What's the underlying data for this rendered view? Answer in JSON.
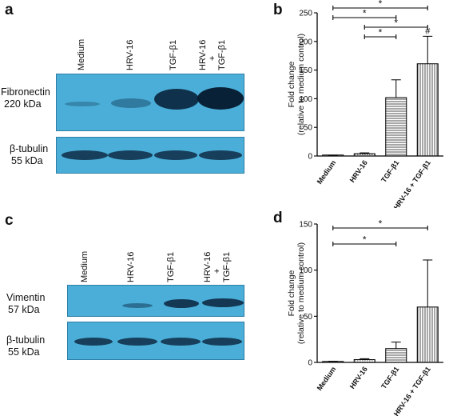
{
  "panels": {
    "a": {
      "letter": "a",
      "lanes": [
        "Medium",
        "HRV-16",
        "TGF-β1",
        "HRV-16",
        "+",
        "TGF-β1"
      ],
      "blot1_label": [
        "Fibronectin",
        "220 kDa"
      ],
      "blot2_label": [
        "β-tubulin",
        "55 kDa"
      ]
    },
    "c": {
      "letter": "c",
      "lanes": [
        "Medium",
        "HRV-16",
        "TGF-β1",
        "HRV-16",
        "+",
        "TGF-β1"
      ],
      "blot1_label": [
        "Vimentin",
        "57 kDa"
      ],
      "blot2_label": [
        "β-tubulin",
        "55 kDa"
      ]
    },
    "b": {
      "letter": "b"
    },
    "d": {
      "letter": "d"
    }
  },
  "chart_data": [
    {
      "panel": "b",
      "type": "bar",
      "categories": [
        "Medium",
        "HRV-16",
        "TGF-β1",
        "HRV-16 + TGF-β1"
      ],
      "values": [
        1,
        4,
        102,
        161
      ],
      "errors": [
        0.5,
        1.5,
        31,
        48
      ],
      "ylabel": [
        "Fold change",
        "(relative to medium control)"
      ],
      "ylim": [
        0,
        250
      ],
      "yticks": [
        0,
        50,
        100,
        150,
        200,
        250
      ],
      "significance": [
        {
          "from": 0,
          "to": 3,
          "label": "*"
        },
        {
          "from": 0,
          "to": 2,
          "label": "*"
        },
        {
          "from": 1,
          "to": 3,
          "label": "*"
        },
        {
          "from": 1,
          "to": 2,
          "label": "*"
        }
      ],
      "bar_annotations": [
        {
          "index": 3,
          "label": "#"
        }
      ]
    },
    {
      "panel": "d",
      "type": "bar",
      "categories": [
        "Medium",
        "HRV-16",
        "TGF-β1",
        "HRV-16 + TGF-β1"
      ],
      "values": [
        1,
        3,
        15,
        60
      ],
      "errors": [
        0.3,
        1,
        7,
        51
      ],
      "ylabel": [
        "Fold change",
        "(relative to medium control)"
      ],
      "ylim": [
        0,
        150
      ],
      "yticks": [
        0,
        50,
        100,
        150
      ],
      "significance": [
        {
          "from": 0,
          "to": 3,
          "label": "*"
        },
        {
          "from": 0,
          "to": 2,
          "label": "*"
        }
      ],
      "bar_annotations": []
    }
  ]
}
